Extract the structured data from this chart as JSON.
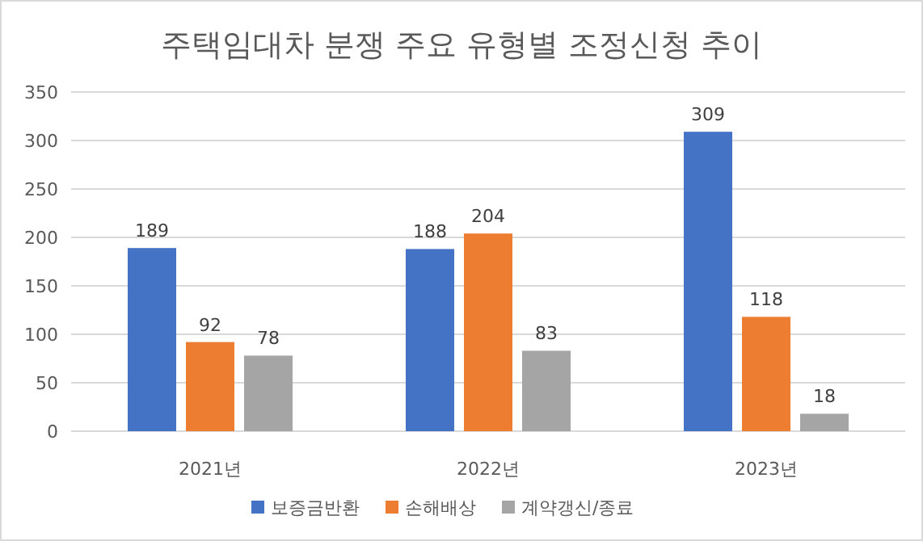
{
  "chart_data": {
    "type": "bar",
    "title": "주택임대차 분쟁 주요 유형별 조정신청 추이",
    "categories": [
      "2021년",
      "2022년",
      "2023년"
    ],
    "series": [
      {
        "name": "보증금반환",
        "color": "#4472c4",
        "values": [
          189,
          188,
          309
        ]
      },
      {
        "name": "손해배상",
        "color": "#ed7d31",
        "values": [
          92,
          204,
          118
        ]
      },
      {
        "name": "계약갱신/종료",
        "color": "#a5a5a5",
        "values": [
          78,
          83,
          18
        ]
      }
    ],
    "ylim": [
      0,
      350
    ],
    "yticks": [
      0,
      50,
      100,
      150,
      200,
      250,
      300,
      350
    ],
    "grid": "y",
    "legend": "bottom",
    "data_labels": true
  }
}
